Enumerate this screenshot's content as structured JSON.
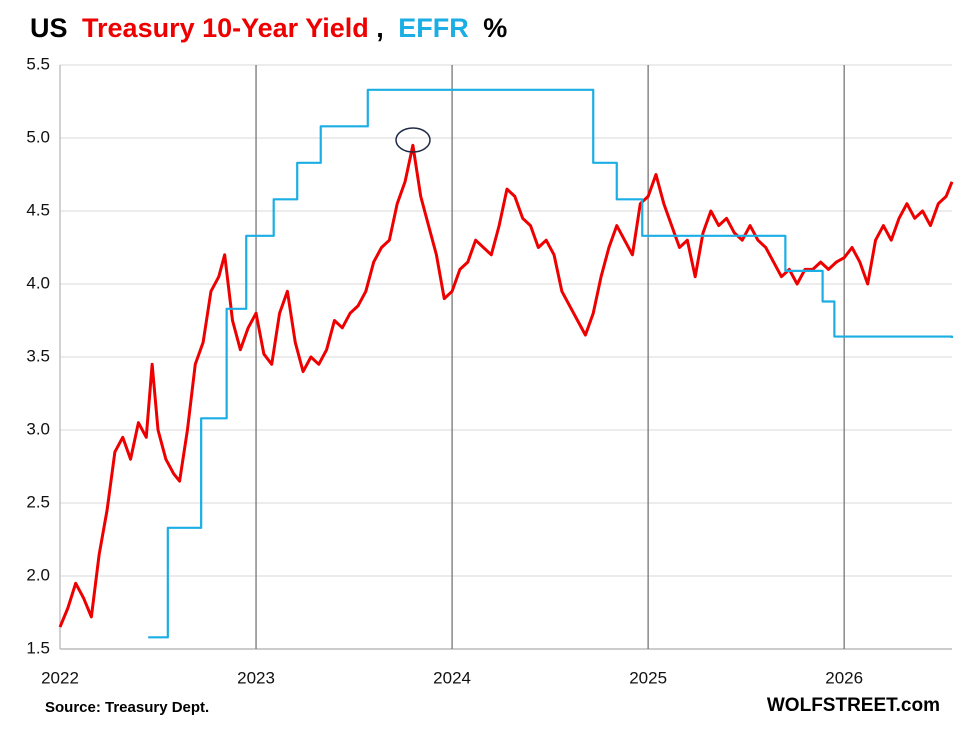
{
  "chart_data": {
    "type": "line",
    "title": "US",
    "title_separator": ",",
    "title_suffix": "%",
    "source": "Source: Treasury Dept.",
    "brand": "WOLFSTREET.com",
    "xlim": [
      2022,
      2026.55
    ],
    "xticks": [
      2022,
      2023,
      2024,
      2025,
      2026
    ],
    "ylim": [
      1.5,
      5.5
    ],
    "yticks": [
      1.5,
      {
        "value": 2,
        "label": "2.0"
      },
      2.5,
      {
        "value": 3,
        "label": "3.0"
      },
      3.5,
      {
        "value": 4,
        "label": "4.0"
      },
      4.5,
      {
        "value": 5,
        "label": "5.0"
      },
      5.5
    ],
    "grid": true,
    "series": [
      {
        "name": "Treasury 10-Year Yield",
        "color": "#ee0000",
        "step": false,
        "x": [
          2022.0,
          2022.04,
          2022.08,
          2022.12,
          2022.16,
          2022.2,
          2022.24,
          2022.28,
          2022.32,
          2022.36,
          2022.4,
          2022.44,
          2022.47,
          2022.5,
          2022.54,
          2022.58,
          2022.61,
          2022.65,
          2022.69,
          2022.73,
          2022.77,
          2022.81,
          2022.84,
          2022.88,
          2022.92,
          2022.96,
          2023.0,
          2023.04,
          2023.08,
          2023.12,
          2023.16,
          2023.2,
          2023.24,
          2023.28,
          2023.32,
          2023.36,
          2023.4,
          2023.44,
          2023.48,
          2023.52,
          2023.56,
          2023.6,
          2023.64,
          2023.68,
          2023.72,
          2023.76,
          2023.8,
          2023.84,
          2023.88,
          2023.92,
          2023.96,
          2024.0,
          2024.04,
          2024.08,
          2024.12,
          2024.16,
          2024.2,
          2024.24,
          2024.28,
          2024.32,
          2024.36,
          2024.4,
          2024.44,
          2024.48,
          2024.52,
          2024.56,
          2024.6,
          2024.64,
          2024.68,
          2024.72,
          2024.76,
          2024.8,
          2024.84,
          2024.88,
          2024.92,
          2024.96,
          2025.0,
          2025.04,
          2025.08,
          2025.12,
          2025.16,
          2025.2,
          2025.24,
          2025.28,
          2025.32,
          2025.36,
          2025.4,
          2025.44,
          2025.48,
          2025.52,
          2025.56,
          2025.6,
          2025.64,
          2025.68,
          2025.72,
          2025.76,
          2025.8,
          2025.84,
          2025.88,
          2025.92,
          2025.96,
          2026.0,
          2026.04,
          2026.08,
          2026.12,
          2026.16,
          2026.2,
          2026.24,
          2026.28,
          2026.32,
          2026.36,
          2026.4,
          2026.44,
          2026.48,
          2026.52,
          2026.55
        ],
        "values": [
          1.65,
          1.78,
          1.95,
          1.85,
          1.72,
          2.15,
          2.45,
          2.85,
          2.95,
          2.8,
          3.05,
          2.95,
          3.45,
          3.0,
          2.8,
          2.7,
          2.65,
          3.0,
          3.45,
          3.6,
          3.95,
          4.05,
          4.2,
          3.75,
          3.55,
          3.7,
          3.8,
          3.52,
          3.45,
          3.8,
          3.95,
          3.6,
          3.4,
          3.5,
          3.45,
          3.55,
          3.75,
          3.7,
          3.8,
          3.85,
          3.95,
          4.15,
          4.25,
          4.3,
          4.55,
          4.7,
          4.95,
          4.6,
          4.4,
          4.2,
          3.9,
          3.95,
          4.1,
          4.15,
          4.3,
          4.25,
          4.2,
          4.4,
          4.65,
          4.6,
          4.45,
          4.4,
          4.25,
          4.3,
          4.2,
          3.95,
          3.85,
          3.75,
          3.65,
          3.8,
          4.05,
          4.25,
          4.4,
          4.3,
          4.2,
          4.55,
          4.6,
          4.75,
          4.55,
          4.4,
          4.25,
          4.3,
          4.05,
          4.35,
          4.5,
          4.4,
          4.45,
          4.35,
          4.3,
          4.4,
          4.3,
          4.25,
          4.15,
          4.05,
          4.1,
          4.0,
          4.1,
          4.1,
          4.15,
          4.1,
          4.15,
          4.18,
          4.25,
          4.15,
          4.0,
          4.3,
          4.4,
          4.3,
          4.45,
          4.55,
          4.45,
          4.5,
          4.4,
          4.55,
          4.6,
          4.7
        ]
      },
      {
        "name": "EFFR",
        "color": "#1aaee5",
        "step": true,
        "x": [
          2022.45,
          2022.55,
          2022.72,
          2022.85,
          2022.95,
          2023.09,
          2023.21,
          2023.33,
          2023.57,
          2024.72,
          2024.84,
          2024.97,
          2025.7,
          2025.89,
          2025.95,
          2026.55
        ],
        "values": [
          1.58,
          2.33,
          3.08,
          3.83,
          4.33,
          4.58,
          4.83,
          5.08,
          5.33,
          4.83,
          4.58,
          4.33,
          4.09,
          3.88,
          3.64,
          3.63
        ]
      }
    ]
  }
}
